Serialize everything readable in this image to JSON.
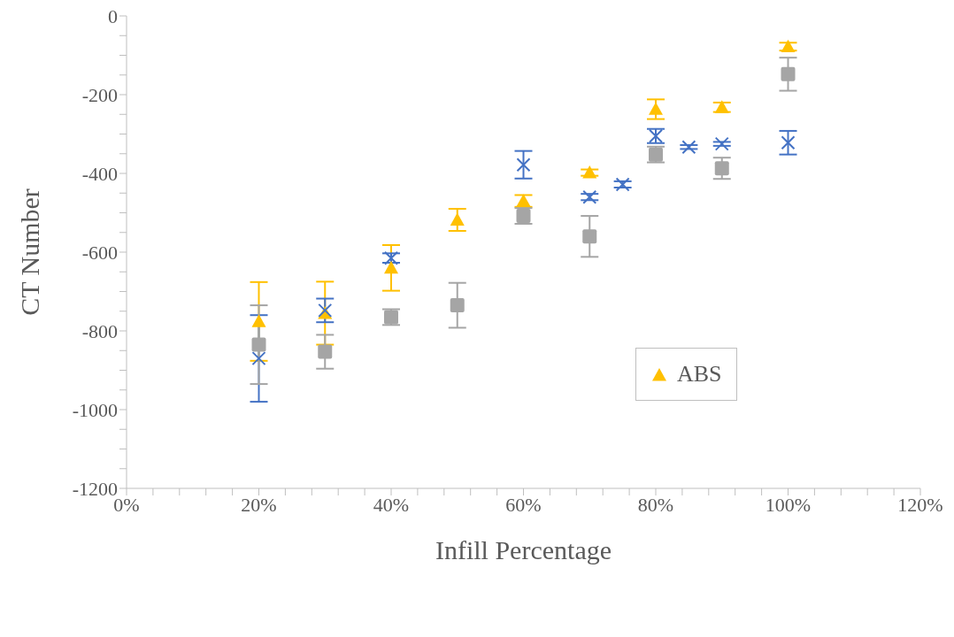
{
  "chart_data": {
    "type": "scatter",
    "xlabel": "Infill Percentage",
    "ylabel": "CT Number",
    "xlim": [
      0,
      120
    ],
    "ylim": [
      -1200,
      0
    ],
    "xticks": [
      {
        "value": 0,
        "label": "0%"
      },
      {
        "value": 4,
        "label": null
      },
      {
        "value": 8,
        "label": null
      },
      {
        "value": 12,
        "label": null
      },
      {
        "value": 16,
        "label": null
      },
      {
        "value": 20,
        "label": "20%"
      },
      {
        "value": 24,
        "label": null
      },
      {
        "value": 28,
        "label": null
      },
      {
        "value": 32,
        "label": null
      },
      {
        "value": 36,
        "label": null
      },
      {
        "value": 40,
        "label": "40%"
      },
      {
        "value": 44,
        "label": null
      },
      {
        "value": 48,
        "label": null
      },
      {
        "value": 52,
        "label": null
      },
      {
        "value": 56,
        "label": null
      },
      {
        "value": 60,
        "label": "60%"
      },
      {
        "value": 64,
        "label": null
      },
      {
        "value": 68,
        "label": null
      },
      {
        "value": 72,
        "label": null
      },
      {
        "value": 76,
        "label": null
      },
      {
        "value": 80,
        "label": "80%"
      },
      {
        "value": 84,
        "label": null
      },
      {
        "value": 88,
        "label": null
      },
      {
        "value": 92,
        "label": null
      },
      {
        "value": 96,
        "label": null
      },
      {
        "value": 100,
        "label": "100%"
      },
      {
        "value": 104,
        "label": null
      },
      {
        "value": 108,
        "label": null
      },
      {
        "value": 112,
        "label": null
      },
      {
        "value": 116,
        "label": null
      },
      {
        "value": 120,
        "label": "120%"
      }
    ],
    "yticks": [
      -1200,
      {
        "value": -1150,
        "label": null
      },
      {
        "value": -1100,
        "label": null
      },
      {
        "value": -1050,
        "label": null
      },
      -1000,
      {
        "value": -950,
        "label": null
      },
      {
        "value": -900,
        "label": null
      },
      {
        "value": -850,
        "label": null
      },
      -800,
      {
        "value": -750,
        "label": null
      },
      {
        "value": -700,
        "label": null
      },
      {
        "value": -650,
        "label": null
      },
      -600,
      {
        "value": -550,
        "label": null
      },
      {
        "value": -500,
        "label": null
      },
      {
        "value": -450,
        "label": null
      },
      -400,
      {
        "value": -350,
        "label": null
      },
      {
        "value": -300,
        "label": null
      },
      {
        "value": -250,
        "label": null
      },
      -200,
      {
        "value": -150,
        "label": null
      },
      {
        "value": -100,
        "label": null
      },
      {
        "value": -50,
        "label": null
      },
      0
    ],
    "grid": false,
    "legend": "bottom right",
    "series": [
      {
        "name": "ABS",
        "color": "#ffc000",
        "marker": "triangle",
        "x": [
          20,
          30,
          40,
          50,
          60,
          70,
          80,
          90,
          100
        ],
        "values": [
          -776,
          -755,
          -640,
          -518,
          -470,
          -398,
          -237,
          -232,
          -78
        ],
        "errors": [
          100,
          80,
          58,
          28,
          15,
          8,
          25,
          12,
          10
        ]
      },
      {
        "color": "#4472c4",
        "marker": "cross",
        "x": [
          20,
          30,
          40,
          60,
          70,
          75,
          80,
          85,
          90,
          100
        ],
        "values": [
          -870,
          -748,
          -615,
          -378,
          -460,
          -428,
          -305,
          -333,
          -325,
          -322
        ],
        "errors": [
          110,
          30,
          12,
          35,
          8,
          8,
          18,
          5,
          5,
          30
        ]
      },
      {
        "color": "#a5a5a5",
        "marker": "square",
        "x": [
          20,
          30,
          40,
          50,
          60,
          70,
          80,
          90,
          100
        ],
        "values": [
          -835,
          -853,
          -765,
          -735,
          -508,
          -560,
          -352,
          -387,
          -148
        ],
        "errors": [
          100,
          43,
          20,
          57,
          20,
          52,
          20,
          27,
          42
        ]
      }
    ]
  }
}
